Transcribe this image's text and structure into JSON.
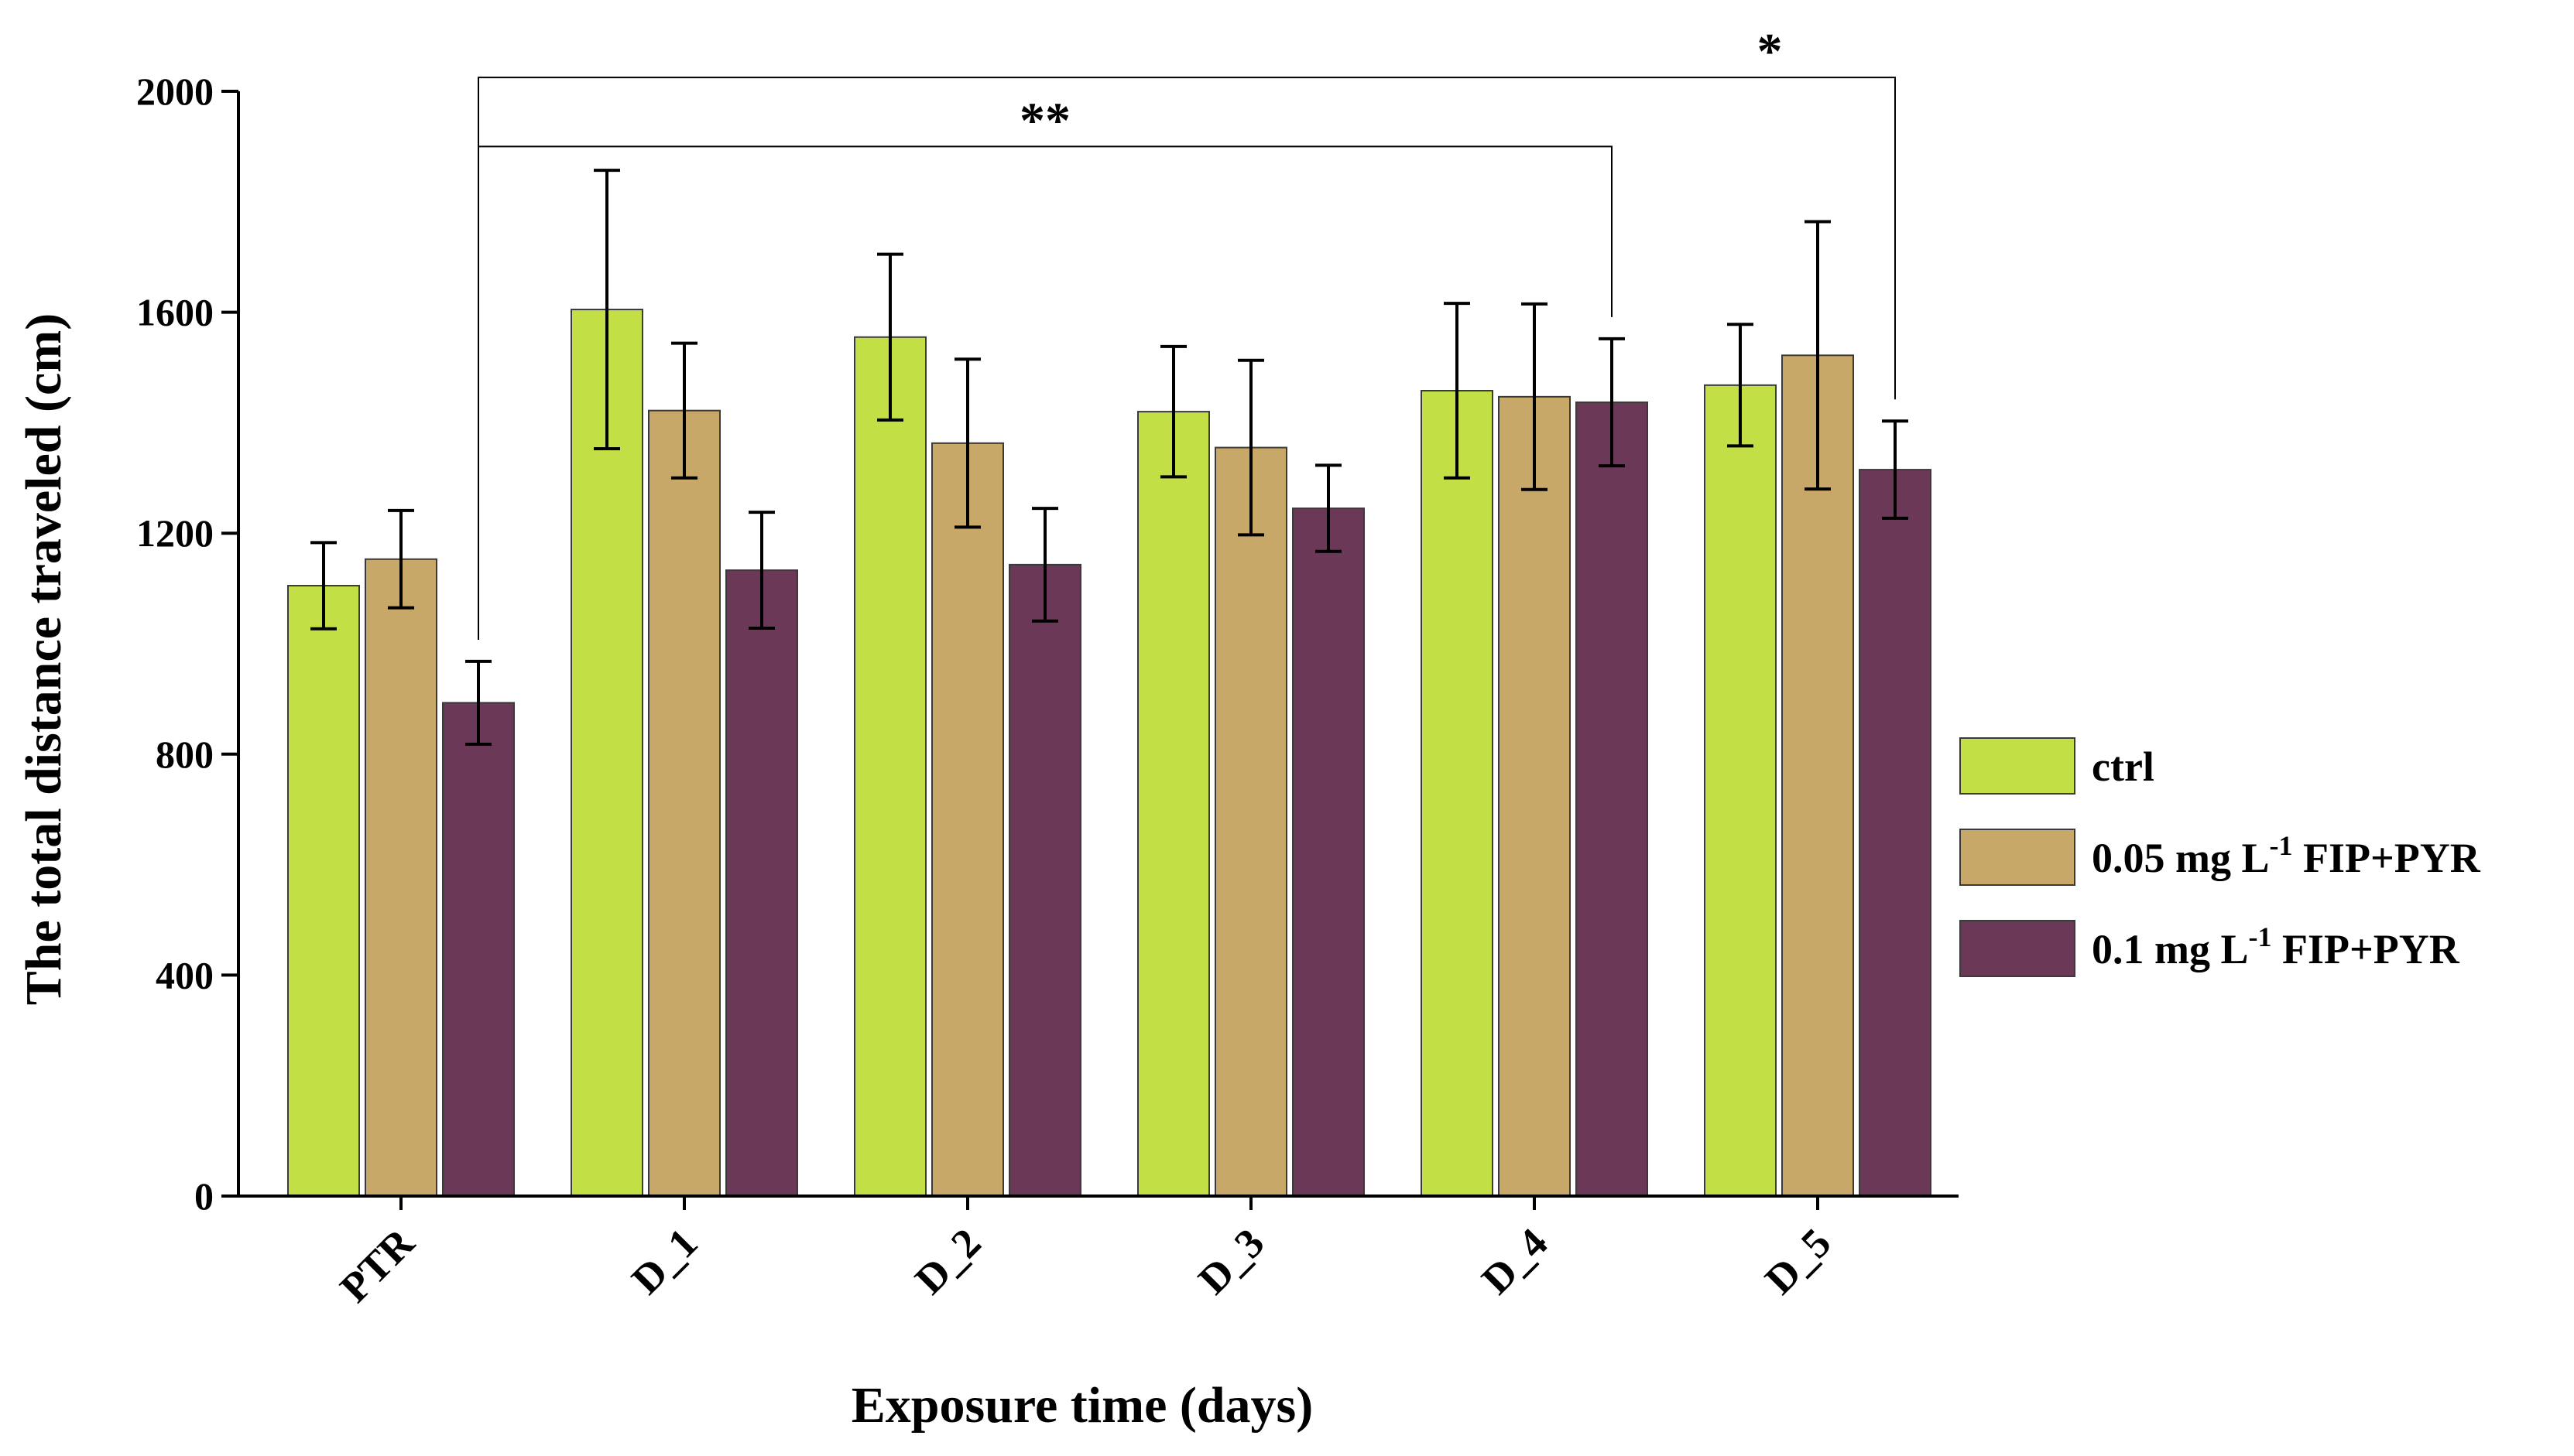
{
  "chart_data": {
    "type": "bar",
    "title": "",
    "xlabel": "Exposure time (days)",
    "ylabel": "The total distance traveled (cm)",
    "ylim": [
      0,
      2000
    ],
    "yticks": [
      "0",
      "400",
      "800",
      "1200",
      "1600",
      "2000"
    ],
    "categories": [
      "PTR",
      "D_1",
      "D_2",
      "D_3",
      "D_4",
      "D_5"
    ],
    "series": [
      {
        "name": "ctrl",
        "color": "#c2e045",
        "values": [
          1105,
          1605,
          1555,
          1420,
          1458,
          1468
        ],
        "errors": [
          78,
          252,
          150,
          118,
          158,
          110
        ]
      },
      {
        "name": "0.05 mg L-1 FIP+PYR",
        "label_parts": {
          "pre": "0.05 mg L",
          "sup": "-1",
          "post": " FIP+PYR"
        },
        "color": "#c8a868",
        "values": [
          1153,
          1422,
          1363,
          1355,
          1447,
          1522
        ],
        "errors": [
          88,
          122,
          152,
          158,
          168,
          242
        ]
      },
      {
        "name": "0.1 mg L-1 FIP+PYR",
        "label_parts": {
          "pre": "0.1 mg L",
          "sup": "-1",
          "post": " FIP+PYR"
        },
        "color": "#6b3857",
        "values": [
          893,
          1133,
          1143,
          1245,
          1437,
          1315
        ],
        "errors": [
          75,
          105,
          102,
          78,
          115,
          88
        ]
      }
    ],
    "legend_position": "right",
    "significance": [
      {
        "label": "**",
        "from_category": "PTR",
        "from_series": 2,
        "to_category": "D_4",
        "to_series": 2,
        "y": 1900
      },
      {
        "label": "*",
        "from_category": "PTR",
        "from_series": 2,
        "to_category": "D_5",
        "to_series": 2,
        "y": 2025
      }
    ]
  }
}
